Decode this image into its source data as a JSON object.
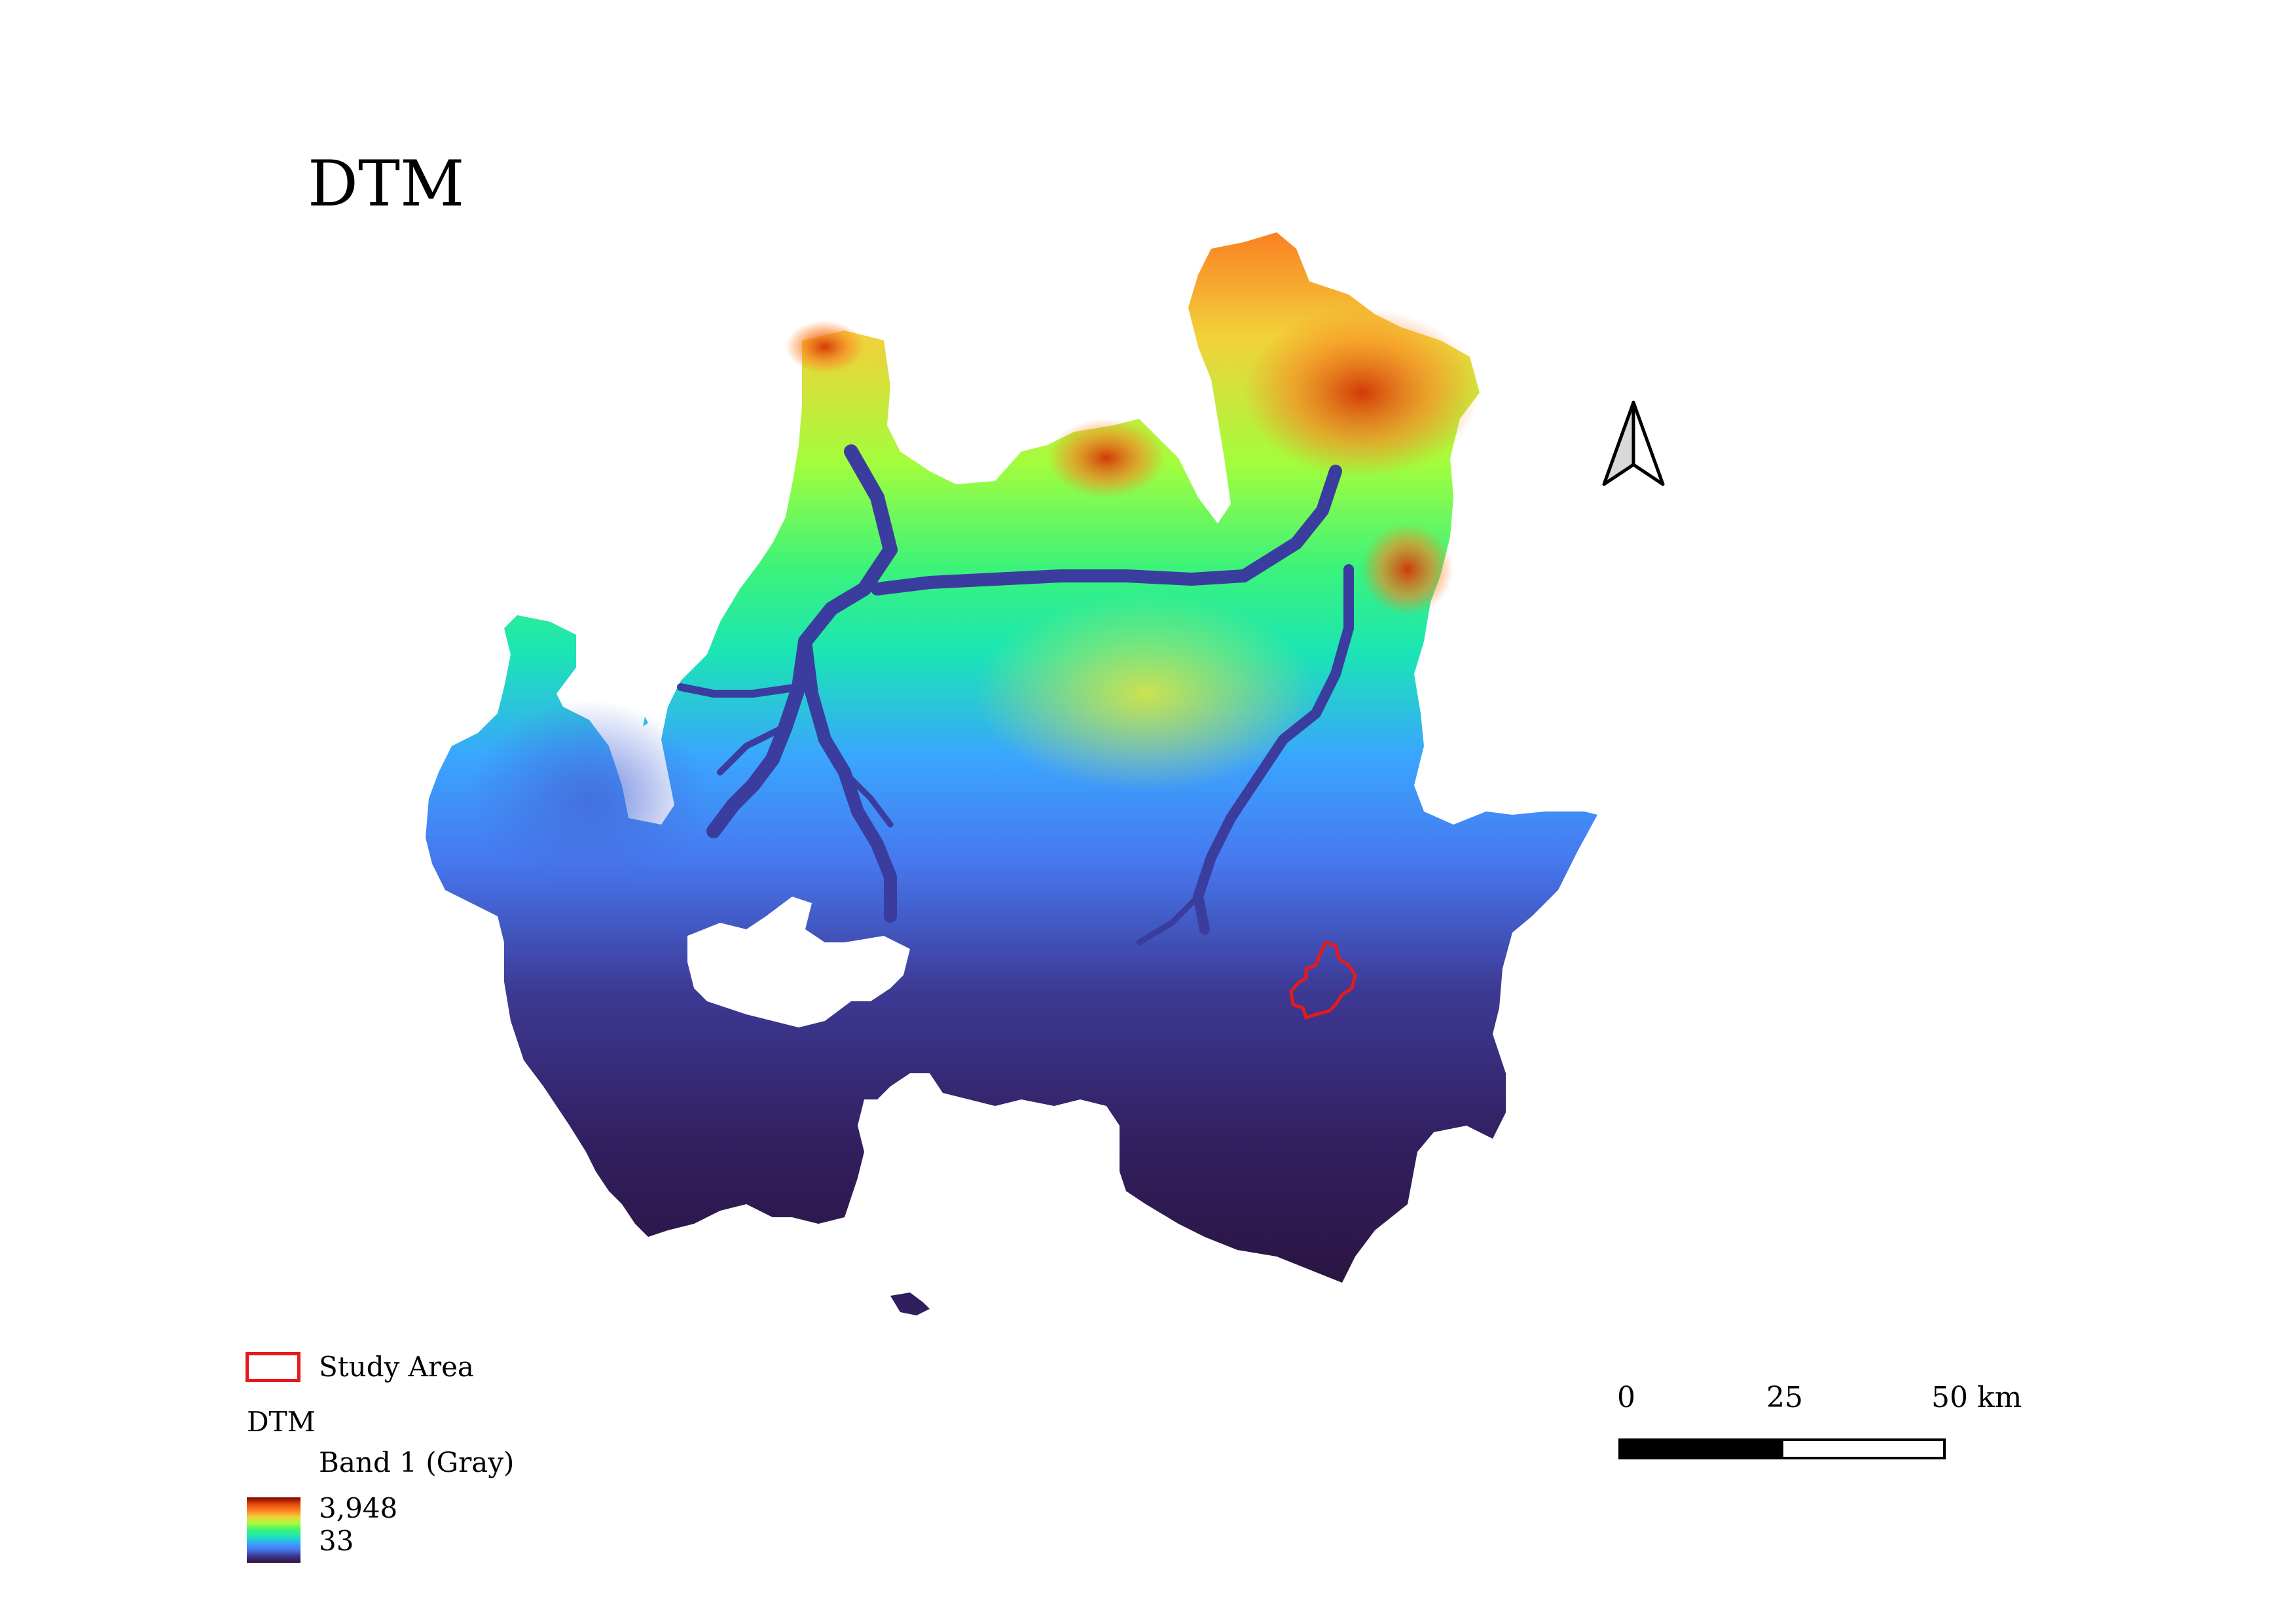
{
  "title": "DTM",
  "legend": {
    "study_area_label": "Study Area",
    "layer_name": "DTM",
    "band_label": "Band 1 (Gray)",
    "max_value": "3,948",
    "min_value": "33",
    "colors": {
      "study_area_outline": "#e41a1c",
      "ramp": [
        "#7a0403",
        "#e4460a",
        "#fb8022",
        "#f2d13a",
        "#a3fd3d",
        "#3bf37a",
        "#1be5b5",
        "#3aa5fe",
        "#4777ef",
        "#3d358b",
        "#30123b"
      ]
    }
  },
  "scale_bar": {
    "labels": [
      "0",
      "25",
      "50 km"
    ]
  },
  "north_arrow": {
    "icon": "north-arrow-icon"
  }
}
